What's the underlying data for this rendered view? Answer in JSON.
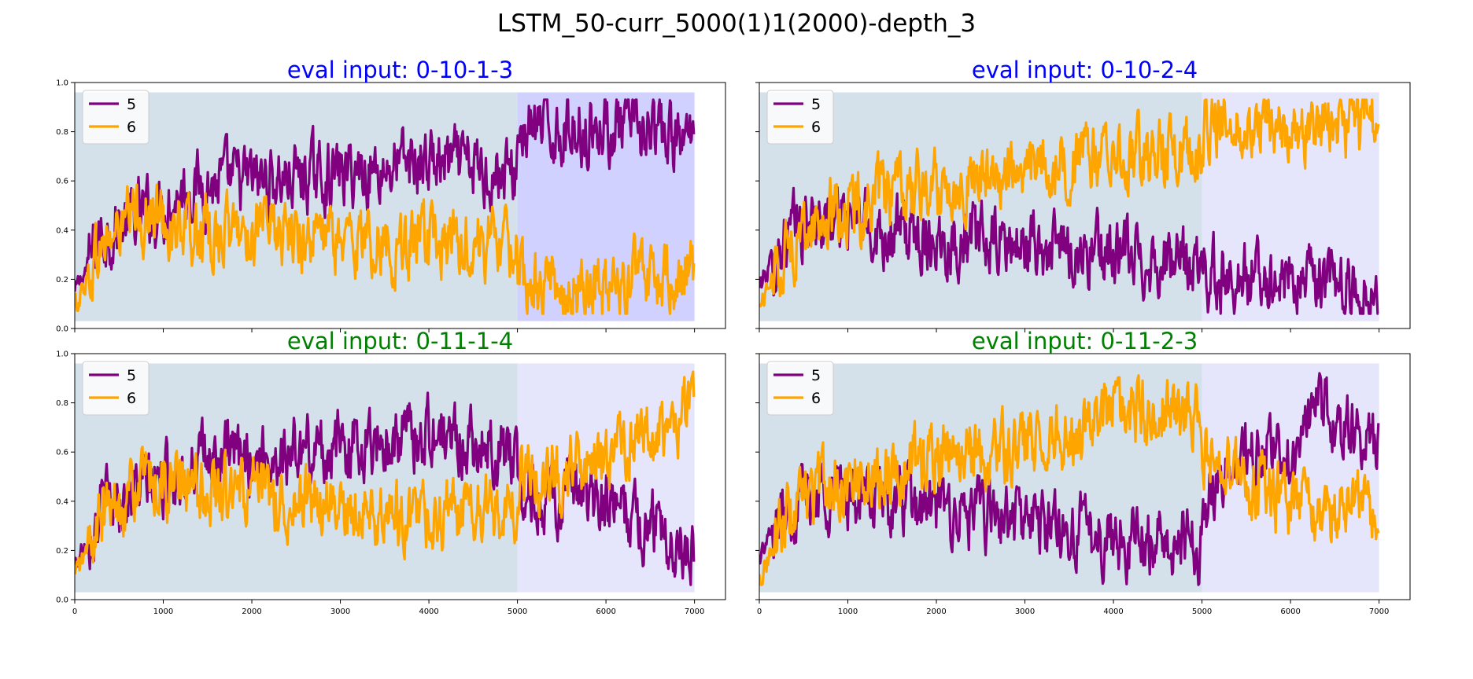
{
  "figure_title": "LSTM_50-curr_5000(1)1(2000)-depth_3",
  "colors": {
    "series_5": "#800080",
    "series_6": "#FFA500",
    "title_blue": "#0000FF",
    "title_green": "#008000",
    "band_train": "#cfdde8",
    "band_eval_strong": "#ccccff",
    "band_eval_light": "#e2e2fb"
  },
  "chart_data": [
    {
      "type": "line",
      "title": "eval input: 0-10-1-3",
      "title_color": "blue",
      "xlim": [
        0,
        7350
      ],
      "ylim": [
        0.0,
        1.0
      ],
      "xticks": [
        0,
        1000,
        2000,
        3000,
        4000,
        5000,
        6000,
        7000
      ],
      "yticks": [
        "0.0",
        "0.2",
        "0.4",
        "0.6",
        "0.8",
        "1.0"
      ],
      "legend": "upper-left",
      "bands": [
        [
          0,
          5000,
          "band_train"
        ],
        [
          5000,
          7000,
          "band_eval_strong"
        ]
      ],
      "series": [
        {
          "name": "5",
          "color_key": "series_5",
          "values": [
            [
              0,
              0.14
            ],
            [
              300,
              0.38
            ],
            [
              700,
              0.45
            ],
            [
              1000,
              0.5
            ],
            [
              1300,
              0.58
            ],
            [
              2000,
              0.6
            ],
            [
              3000,
              0.63
            ],
            [
              4000,
              0.68
            ],
            [
              4990,
              0.62
            ],
            [
              5000,
              0.8
            ],
            [
              6000,
              0.82
            ],
            [
              7000,
              0.75
            ]
          ]
        },
        {
          "name": "6",
          "color_key": "series_6",
          "values": [
            [
              0,
              0.09
            ],
            [
              300,
              0.33
            ],
            [
              700,
              0.46
            ],
            [
              1000,
              0.45
            ],
            [
              1300,
              0.38
            ],
            [
              2000,
              0.4
            ],
            [
              3000,
              0.36
            ],
            [
              4000,
              0.33
            ],
            [
              4990,
              0.35
            ],
            [
              5000,
              0.17
            ],
            [
              6000,
              0.17
            ],
            [
              7000,
              0.25
            ]
          ]
        }
      ]
    },
    {
      "type": "line",
      "title": "eval input: 0-10-2-4",
      "title_color": "blue",
      "xlim": [
        0,
        7350
      ],
      "ylim": [
        0.0,
        1.0
      ],
      "xticks": [
        0,
        1000,
        2000,
        3000,
        4000,
        5000,
        6000,
        7000
      ],
      "yticks": [],
      "legend": "upper-left",
      "bands": [
        [
          0,
          5000,
          "band_train"
        ],
        [
          5000,
          7000,
          "band_eval_light"
        ]
      ],
      "series": [
        {
          "name": "5",
          "color_key": "series_5",
          "values": [
            [
              0,
              0.17
            ],
            [
              300,
              0.38
            ],
            [
              700,
              0.45
            ],
            [
              1000,
              0.45
            ],
            [
              1300,
              0.4
            ],
            [
              2000,
              0.37
            ],
            [
              3000,
              0.33
            ],
            [
              4000,
              0.3
            ],
            [
              4990,
              0.25
            ],
            [
              5000,
              0.22
            ],
            [
              6000,
              0.2
            ],
            [
              7000,
              0.14
            ]
          ]
        },
        {
          "name": "6",
          "color_key": "series_6",
          "values": [
            [
              0,
              0.09
            ],
            [
              300,
              0.33
            ],
            [
              700,
              0.45
            ],
            [
              1000,
              0.48
            ],
            [
              1300,
              0.52
            ],
            [
              2000,
              0.58
            ],
            [
              3000,
              0.64
            ],
            [
              4000,
              0.7
            ],
            [
              4990,
              0.75
            ],
            [
              5000,
              0.84
            ],
            [
              6000,
              0.8
            ],
            [
              7000,
              0.85
            ]
          ]
        }
      ]
    },
    {
      "type": "line",
      "title": "eval input: 0-11-1-4",
      "title_color": "green",
      "xlim": [
        0,
        7350
      ],
      "ylim": [
        0.0,
        1.0
      ],
      "xticks": [
        0,
        1000,
        2000,
        3000,
        4000,
        5000,
        6000,
        7000
      ],
      "yticks": [
        "0.0",
        "0.2",
        "0.4",
        "0.6",
        "0.8",
        "1.0"
      ],
      "legend": "upper-left",
      "bands": [
        [
          0,
          5000,
          "band_train"
        ],
        [
          5000,
          7000,
          "band_eval_light"
        ]
      ],
      "series": [
        {
          "name": "5",
          "color_key": "series_5",
          "values": [
            [
              0,
              0.14
            ],
            [
              300,
              0.38
            ],
            [
              700,
              0.45
            ],
            [
              1000,
              0.48
            ],
            [
              1300,
              0.55
            ],
            [
              2000,
              0.58
            ],
            [
              3000,
              0.62
            ],
            [
              4000,
              0.68
            ],
            [
              4990,
              0.6
            ],
            [
              5000,
              0.45
            ],
            [
              6000,
              0.38
            ],
            [
              7000,
              0.22
            ]
          ]
        },
        {
          "name": "6",
          "color_key": "series_6",
          "values": [
            [
              0,
              0.09
            ],
            [
              300,
              0.33
            ],
            [
              700,
              0.46
            ],
            [
              1000,
              0.47
            ],
            [
              1300,
              0.44
            ],
            [
              2000,
              0.43
            ],
            [
              3000,
              0.36
            ],
            [
              4000,
              0.33
            ],
            [
              4990,
              0.38
            ],
            [
              5000,
              0.5
            ],
            [
              6000,
              0.55
            ],
            [
              7000,
              0.78
            ]
          ]
        }
      ]
    },
    {
      "type": "line",
      "title": "eval input: 0-11-2-3",
      "title_color": "green",
      "xlim": [
        0,
        7350
      ],
      "ylim": [
        0.0,
        1.0
      ],
      "xticks": [
        0,
        1000,
        2000,
        3000,
        4000,
        5000,
        6000,
        7000
      ],
      "yticks": [],
      "legend": "upper-left",
      "bands": [
        [
          0,
          5000,
          "band_train"
        ],
        [
          5000,
          7000,
          "band_eval_light"
        ]
      ],
      "series": [
        {
          "name": "5",
          "color_key": "series_5",
          "values": [
            [
              0,
              0.17
            ],
            [
              300,
              0.38
            ],
            [
              700,
              0.45
            ],
            [
              1000,
              0.43
            ],
            [
              1300,
              0.4
            ],
            [
              2000,
              0.36
            ],
            [
              3000,
              0.32
            ],
            [
              4000,
              0.25
            ],
            [
              4990,
              0.22
            ],
            [
              5000,
              0.4
            ],
            [
              5500,
              0.58
            ],
            [
              6000,
              0.6
            ],
            [
              6300,
              0.77
            ],
            [
              7000,
              0.6
            ]
          ]
        },
        {
          "name": "6",
          "color_key": "series_6",
          "values": [
            [
              0,
              0.09
            ],
            [
              300,
              0.33
            ],
            [
              700,
              0.45
            ],
            [
              1000,
              0.48
            ],
            [
              1300,
              0.52
            ],
            [
              2000,
              0.58
            ],
            [
              3000,
              0.62
            ],
            [
              4000,
              0.75
            ],
            [
              4990,
              0.76
            ],
            [
              5000,
              0.62
            ],
            [
              5500,
              0.47
            ],
            [
              6000,
              0.4
            ],
            [
              6300,
              0.32
            ],
            [
              7000,
              0.42
            ]
          ]
        }
      ]
    }
  ]
}
